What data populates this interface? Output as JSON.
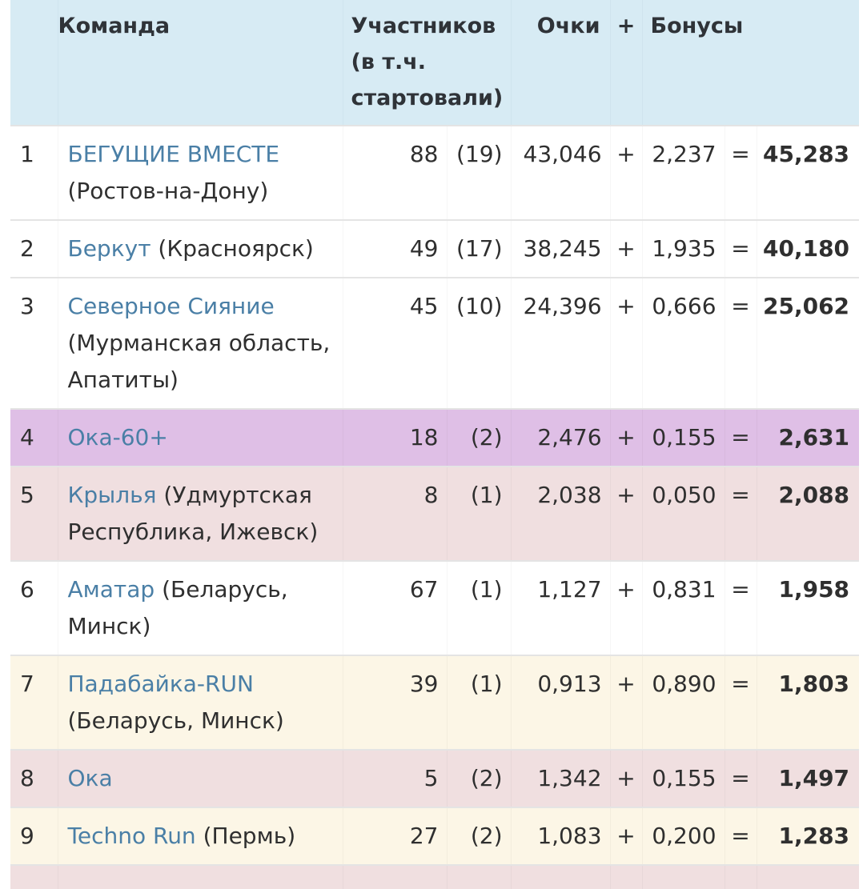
{
  "table": {
    "headers": {
      "rank": "",
      "team": "Команда",
      "participants": "Участников (в т.ч. стартовали)",
      "points": "Очки",
      "plus": "+",
      "bonus": "Бонусы"
    },
    "row_colors": {
      "white": "#ffffff",
      "purple": "#dfbfe6",
      "pink": "#f0dfe0",
      "cream": "#fcf6e6",
      "header": "#d7ebf4",
      "link": "#4a7fa6"
    },
    "rows": [
      {
        "rank": "1",
        "team": "БЕГУЩИЕ ВМЕСТЕ",
        "location": "(Ростов-на-Дону)",
        "participants": "88",
        "started": "(19)",
        "points": "43,046",
        "plus": "+",
        "bonus": "2,237",
        "eq": "=",
        "total": "45,283",
        "bg": "white"
      },
      {
        "rank": "2",
        "team": "Беркут",
        "location": "(Красноярск)",
        "participants": "49",
        "started": "(17)",
        "points": "38,245",
        "plus": "+",
        "bonus": "1,935",
        "eq": "=",
        "total": "40,180",
        "bg": "white"
      },
      {
        "rank": "3",
        "team": "Северное Сияние",
        "location": "(Мурманская область, Апатиты)",
        "participants": "45",
        "started": "(10)",
        "points": "24,396",
        "plus": "+",
        "bonus": "0,666",
        "eq": "=",
        "total": "25,062",
        "bg": "white"
      },
      {
        "rank": "4",
        "team": "Ока-60+",
        "location": "",
        "participants": "18",
        "started": "(2)",
        "points": "2,476",
        "plus": "+",
        "bonus": "0,155",
        "eq": "=",
        "total": "2,631",
        "bg": "purple"
      },
      {
        "rank": "5",
        "team": "Крылья",
        "location": "(Удмуртская Республика, Ижевск)",
        "participants": "8",
        "started": "(1)",
        "points": "2,038",
        "plus": "+",
        "bonus": "0,050",
        "eq": "=",
        "total": "2,088",
        "bg": "pink"
      },
      {
        "rank": "6",
        "team": "Аматар",
        "location": "(Беларусь, Минск)",
        "participants": "67",
        "started": "(1)",
        "points": "1,127",
        "plus": "+",
        "bonus": "0,831",
        "eq": "=",
        "total": "1,958",
        "bg": "white"
      },
      {
        "rank": "7",
        "team": "Падабайка-RUN",
        "location": "(Беларусь, Минск)",
        "participants": "39",
        "started": "(1)",
        "points": "0,913",
        "plus": "+",
        "bonus": "0,890",
        "eq": "=",
        "total": "1,803",
        "bg": "cream"
      },
      {
        "rank": "8",
        "team": "Ока",
        "location": "",
        "participants": "5",
        "started": "(2)",
        "points": "1,342",
        "plus": "+",
        "bonus": "0,155",
        "eq": "=",
        "total": "1,497",
        "bg": "pink"
      },
      {
        "rank": "9",
        "team": "Techno Run",
        "location": "(Пермь)",
        "participants": "27",
        "started": "(2)",
        "points": "1,083",
        "plus": "+",
        "bonus": "0,200",
        "eq": "=",
        "total": "1,283",
        "bg": "cream"
      }
    ]
  }
}
